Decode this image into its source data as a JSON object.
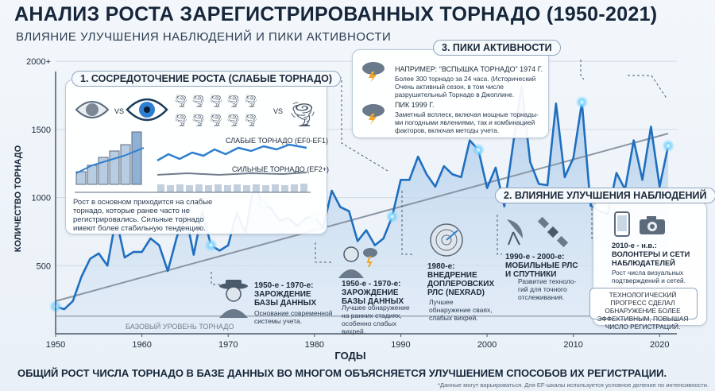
{
  "title": "АНАЛИЗ РОСТА ЗАРЕГИСТРИРОВАННЫХ ТОРНАДО (1950-2021)",
  "subtitle": "ВЛИЯНИЕ УЛУЧШЕНИЯ НАБЛЮДЕНИЙ И ПИКИ АКТИВНОСТИ",
  "chart_data": {
    "type": "line",
    "xlabel": "ГОДЫ",
    "ylabel": "КОЛИЧЕСТВО ТОРНАДО",
    "xlim": [
      1950,
      2022
    ],
    "ylim": [
      0,
      2100
    ],
    "x_ticks": [
      1950,
      1960,
      1970,
      1980,
      1990,
      2000,
      2010,
      2020
    ],
    "y_ticks": [
      500,
      1000,
      1500,
      2000
    ],
    "y_tick_labels": [
      "500",
      "1000",
      "1500",
      "2000+"
    ],
    "series": [
      {
        "x": [
          1950,
          1951,
          1952,
          1953,
          1954,
          1955,
          1956,
          1957,
          1958,
          1959,
          1960,
          1961,
          1962,
          1963,
          1964,
          1965,
          1966,
          1967,
          1968,
          1969,
          1970,
          1971,
          1972,
          1973,
          1974,
          1975,
          1976,
          1977,
          1978,
          1979,
          1980,
          1981,
          1982,
          1983,
          1984,
          1985,
          1986,
          1987,
          1988,
          1989,
          1990,
          1991,
          1992,
          1993,
          1994,
          1995,
          1996,
          1997,
          1998,
          1999,
          2000,
          2001,
          2002,
          2003,
          2004,
          2005,
          2006,
          2007,
          2008,
          2009,
          2010,
          2011,
          2012,
          2013,
          2014,
          2015,
          2016,
          2017,
          2018,
          2019,
          2020,
          2021
        ],
        "values": [
          201,
          180,
          240,
          420,
          550,
          590,
          500,
          850,
          560,
          600,
          600,
          700,
          650,
          460,
          700,
          900,
          580,
          900,
          650,
          610,
          650,
          890,
          740,
          1100,
          950,
          920,
          830,
          850,
          790,
          850,
          860,
          780,
          1050,
          930,
          900,
          680,
          760,
          650,
          700,
          860,
          1130,
          1130,
          1300,
          1170,
          1080,
          1230,
          1170,
          1150,
          1420,
          1350,
          1070,
          1220,
          935,
          1380,
          1820,
          1260,
          1100,
          1090,
          1690,
          1150,
          1290,
          1700,
          940,
          900,
          880,
          1180,
          1060,
          1420,
          1130,
          1520,
          1080,
          1380
        ]
      },
      {
        "name": "БАЗОВЫЙ УРОВЕНЬ ТОРНАДО",
        "x": [
          1950,
          2021
        ],
        "values": [
          130,
          130
        ]
      },
      {
        "x": [
          1950,
          2021
        ],
        "values": [
          240,
          1470
        ]
      }
    ],
    "annotations": [
      "1. СОСРЕДОТОЧЕНИЕ РОСТА (СЛАБЫЕ ТОРНАДО)",
      "3. ПИКИ АКТИВНОСТИ",
      "2. ВЛИЯНИЕ УЛУЧШЕНИЯ НАБЛЮДЕНИЙ"
    ]
  },
  "panel1": {
    "heading": "1. СОСРЕДОТОЧЕНИЕ РОСТА (СЛАБЫЕ ТОРНАДО)",
    "vs1": "VS",
    "vs2": "VS",
    "weak_label": "СЛАБЫЕ ТОРНАДО (EF0-EF1)",
    "strong_label": "СИЛЬНЫЕ ТОРНАДО (EF2+)",
    "text": "Рост в основном приходится на слабые торнадо, которые ранее часто не регистрировались. Сильные торнадо имеют более стабильную тенденцию."
  },
  "panel3": {
    "heading": "3. ПИКИ АКТИВНОСТИ",
    "item1_title": "НАПРИМЕР: \"ВСПЫШКА ТОРНАДО\" 1974 Г.",
    "item1_text": "Более 300 торнадо за 24 часа. (Исторический Очень активный сезон, в том числе разрушительный Торнадо в Джоплине.",
    "item2_title": "ПИК 1999 Г.",
    "item2_text": "Заметный всплеск, включая мощные торнады-ми погодными явлениями, так и комбинацией факторов, включая методы учета."
  },
  "panel2": {
    "heading": "2. ВЛИЯНИЕ УЛУЧШЕНИЯ НАБЛЮДЕНИЙ",
    "item_title": "2010-е - н.в.: ВОЛОНТЕРЫ И СЕТИ НАБЛЮДАТЕЛЕЙ",
    "item_text": "Рост числа визуальных подтверждений и сетей.",
    "conclusion": "ТЕХНОЛОГИЧЕСКИЙ ПРОГРЕСС СДЕЛАЛ ОБНАРУЖЕНИЕ БОЛЕЕ ЭФФЕКТИВНЫМ, ПОВЫШАЯ ЧИСЛО РЕГИСТРАЦИЙ."
  },
  "eras": [
    {
      "title": "1950-е - 1970-е: ЗАРОЖДЕНИЕ БАЗЫ ДАННЫХ",
      "text": "Основание современной системы учета."
    },
    {
      "title": "1950-е - 1970-е: ЗАРОЖДЕНИЕ БАЗЫ ДАННЫХ",
      "text": "Лучшее обнаружение на ранних стадиях, особенно слабых вихрей."
    },
    {
      "title": "1980-е: ВНЕДРЕНИЕ ДОПЛЕРОВСКИХ РЛС (NEXRAD)",
      "text": "Лучшее обнаружение сваях, слабых вихрей."
    },
    {
      "title": "1990-е - 2000-е: МОБИЛЬНЫЕ РЛС И СПУТНИКИ",
      "text": "Развитие техноло-гий для точного отслеживания."
    }
  ],
  "baseline_label": "БАЗОВЫЙ УРОВЕНЬ ТОРНАДО",
  "bottom_note": "ОБЩИЙ РОСТ ЧИСЛА ТОРНАДО В БАЗЕ ДАННЫХ ВО МНОГОМ ОБЪЯСНЯЕТСЯ УЛУЧШЕНИЕМ СПОСОБОВ ИХ РЕГИСТРАЦИИ.",
  "footnote": "*Данные могут варьироваться. Для EF-шкалы используется условное деление по интенсивности.",
  "colors": {
    "line": "#1f6fc0",
    "fill": "#b9d4ee",
    "trend": "#8a96a4",
    "text": "#16263a"
  }
}
